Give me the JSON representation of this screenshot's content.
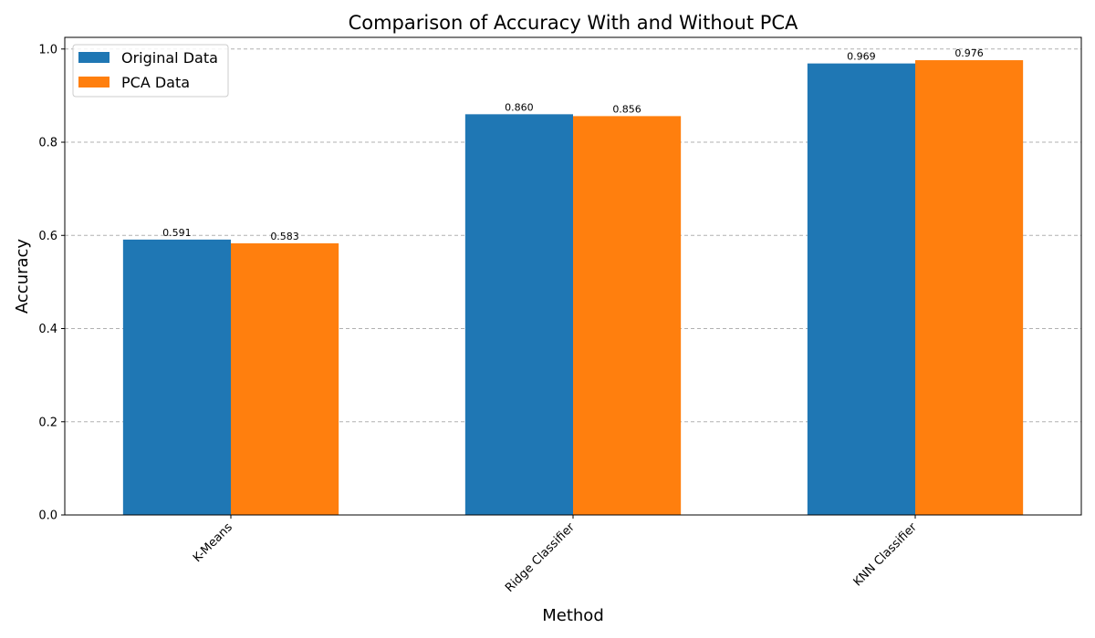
{
  "chart_data": {
    "type": "bar",
    "title": "Comparison of Accuracy With and Without PCA",
    "xlabel": "Method",
    "ylabel": "Accuracy",
    "categories": [
      "K-Means",
      "Ridge Classifier",
      "KNN Classifier"
    ],
    "series": [
      {
        "name": "Original Data",
        "color": "#1f77b4",
        "values": [
          0.591,
          0.86,
          0.969
        ],
        "labels": [
          "0.591",
          "0.860",
          "0.969"
        ]
      },
      {
        "name": "PCA Data",
        "color": "#ff7f0e",
        "values": [
          0.583,
          0.856,
          0.976
        ],
        "labels": [
          "0.583",
          "0.856",
          "0.976"
        ]
      }
    ],
    "ylim": [
      0,
      1.025
    ],
    "yticks": [
      0.0,
      0.2,
      0.4,
      0.6,
      0.8,
      1.0
    ],
    "ytick_labels": [
      "0.0",
      "0.2",
      "0.4",
      "0.6",
      "0.8",
      "1.0"
    ],
    "grid": "y-dashed",
    "legend_position": "top-left"
  }
}
